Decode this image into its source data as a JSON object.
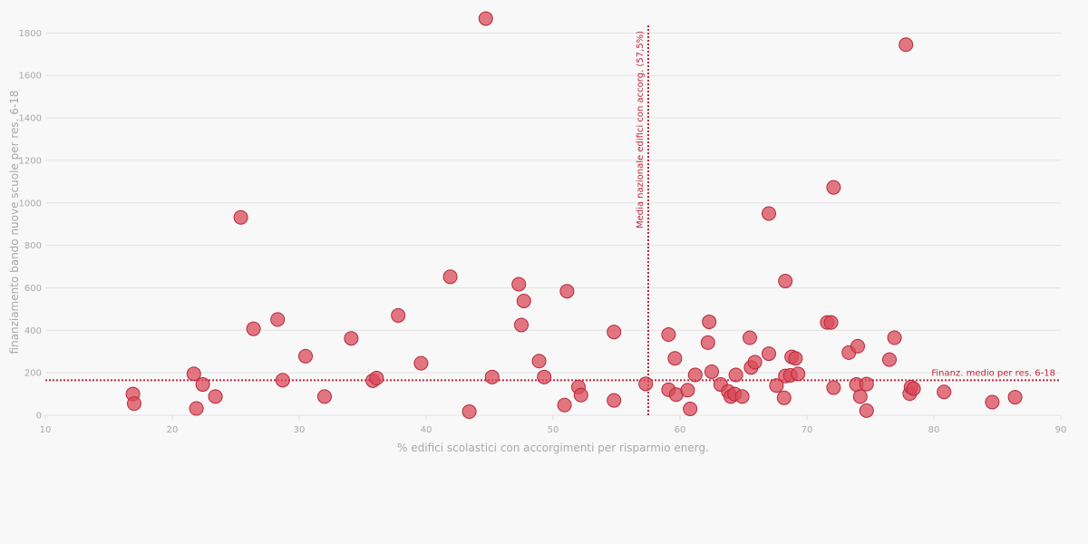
{
  "chart_data": {
    "type": "scatter",
    "xlabel": "% edifici scolastici con accorgimenti per risparmio energ.",
    "ylabel": "finanziamento bando nuove scuole per res. 6-18",
    "xlim": [
      10,
      90
    ],
    "ylim": [
      0,
      1870
    ],
    "x_ticks": [
      10,
      20,
      30,
      40,
      50,
      60,
      70,
      80,
      90
    ],
    "y_ticks": [
      0,
      200,
      400,
      600,
      800,
      1000,
      1200,
      1400,
      1600,
      1800
    ],
    "grid": "horizontal",
    "colors": {
      "point": "#d94b5a",
      "reference": "#c0273a"
    },
    "reference_lines": [
      {
        "orientation": "vertical",
        "value": 57.5,
        "label": "Media nazionale edifici con accorg. (57,5%)"
      },
      {
        "orientation": "horizontal",
        "value": 165,
        "label": "Finanz. medio per res. 6-18"
      }
    ],
    "points": [
      {
        "x": 16.9,
        "y": 100
      },
      {
        "x": 17.0,
        "y": 55
      },
      {
        "x": 21.7,
        "y": 195
      },
      {
        "x": 21.9,
        "y": 32
      },
      {
        "x": 22.4,
        "y": 145
      },
      {
        "x": 23.4,
        "y": 88
      },
      {
        "x": 25.4,
        "y": 932
      },
      {
        "x": 26.4,
        "y": 407
      },
      {
        "x": 28.3,
        "y": 451
      },
      {
        "x": 28.7,
        "y": 165
      },
      {
        "x": 30.5,
        "y": 278
      },
      {
        "x": 32.0,
        "y": 88
      },
      {
        "x": 34.1,
        "y": 362
      },
      {
        "x": 35.8,
        "y": 163
      },
      {
        "x": 36.1,
        "y": 175
      },
      {
        "x": 37.8,
        "y": 470
      },
      {
        "x": 39.6,
        "y": 245
      },
      {
        "x": 41.9,
        "y": 652
      },
      {
        "x": 43.4,
        "y": 17
      },
      {
        "x": 44.7,
        "y": 1868
      },
      {
        "x": 45.2,
        "y": 180
      },
      {
        "x": 47.3,
        "y": 617
      },
      {
        "x": 47.5,
        "y": 425
      },
      {
        "x": 47.7,
        "y": 538
      },
      {
        "x": 48.9,
        "y": 255
      },
      {
        "x": 49.3,
        "y": 180
      },
      {
        "x": 50.9,
        "y": 48
      },
      {
        "x": 51.1,
        "y": 584
      },
      {
        "x": 52.0,
        "y": 133
      },
      {
        "x": 52.2,
        "y": 95
      },
      {
        "x": 54.8,
        "y": 392
      },
      {
        "x": 54.8,
        "y": 70
      },
      {
        "x": 57.3,
        "y": 148
      },
      {
        "x": 59.1,
        "y": 380
      },
      {
        "x": 59.1,
        "y": 120
      },
      {
        "x": 59.6,
        "y": 268
      },
      {
        "x": 59.7,
        "y": 97
      },
      {
        "x": 60.6,
        "y": 118
      },
      {
        "x": 60.8,
        "y": 30
      },
      {
        "x": 61.2,
        "y": 190
      },
      {
        "x": 62.2,
        "y": 342
      },
      {
        "x": 62.3,
        "y": 440
      },
      {
        "x": 62.5,
        "y": 205
      },
      {
        "x": 63.2,
        "y": 145
      },
      {
        "x": 63.8,
        "y": 112
      },
      {
        "x": 64.0,
        "y": 88
      },
      {
        "x": 64.3,
        "y": 100
      },
      {
        "x": 64.4,
        "y": 190
      },
      {
        "x": 64.9,
        "y": 88
      },
      {
        "x": 65.5,
        "y": 365
      },
      {
        "x": 65.6,
        "y": 225
      },
      {
        "x": 65.9,
        "y": 250
      },
      {
        "x": 67.0,
        "y": 950
      },
      {
        "x": 67.0,
        "y": 290
      },
      {
        "x": 67.6,
        "y": 140
      },
      {
        "x": 68.2,
        "y": 82
      },
      {
        "x": 68.3,
        "y": 632
      },
      {
        "x": 68.3,
        "y": 185
      },
      {
        "x": 68.7,
        "y": 188
      },
      {
        "x": 68.8,
        "y": 275
      },
      {
        "x": 69.1,
        "y": 268
      },
      {
        "x": 69.3,
        "y": 195
      },
      {
        "x": 71.6,
        "y": 437
      },
      {
        "x": 71.9,
        "y": 437
      },
      {
        "x": 72.1,
        "y": 1073
      },
      {
        "x": 72.1,
        "y": 130
      },
      {
        "x": 73.3,
        "y": 295
      },
      {
        "x": 73.9,
        "y": 145
      },
      {
        "x": 74.0,
        "y": 325
      },
      {
        "x": 74.2,
        "y": 88
      },
      {
        "x": 74.7,
        "y": 147
      },
      {
        "x": 74.7,
        "y": 22
      },
      {
        "x": 76.5,
        "y": 262
      },
      {
        "x": 76.9,
        "y": 365
      },
      {
        "x": 77.8,
        "y": 1745
      },
      {
        "x": 78.1,
        "y": 102
      },
      {
        "x": 78.2,
        "y": 133
      },
      {
        "x": 78.4,
        "y": 125
      },
      {
        "x": 80.8,
        "y": 110
      },
      {
        "x": 84.6,
        "y": 62
      },
      {
        "x": 86.4,
        "y": 85
      }
    ]
  }
}
